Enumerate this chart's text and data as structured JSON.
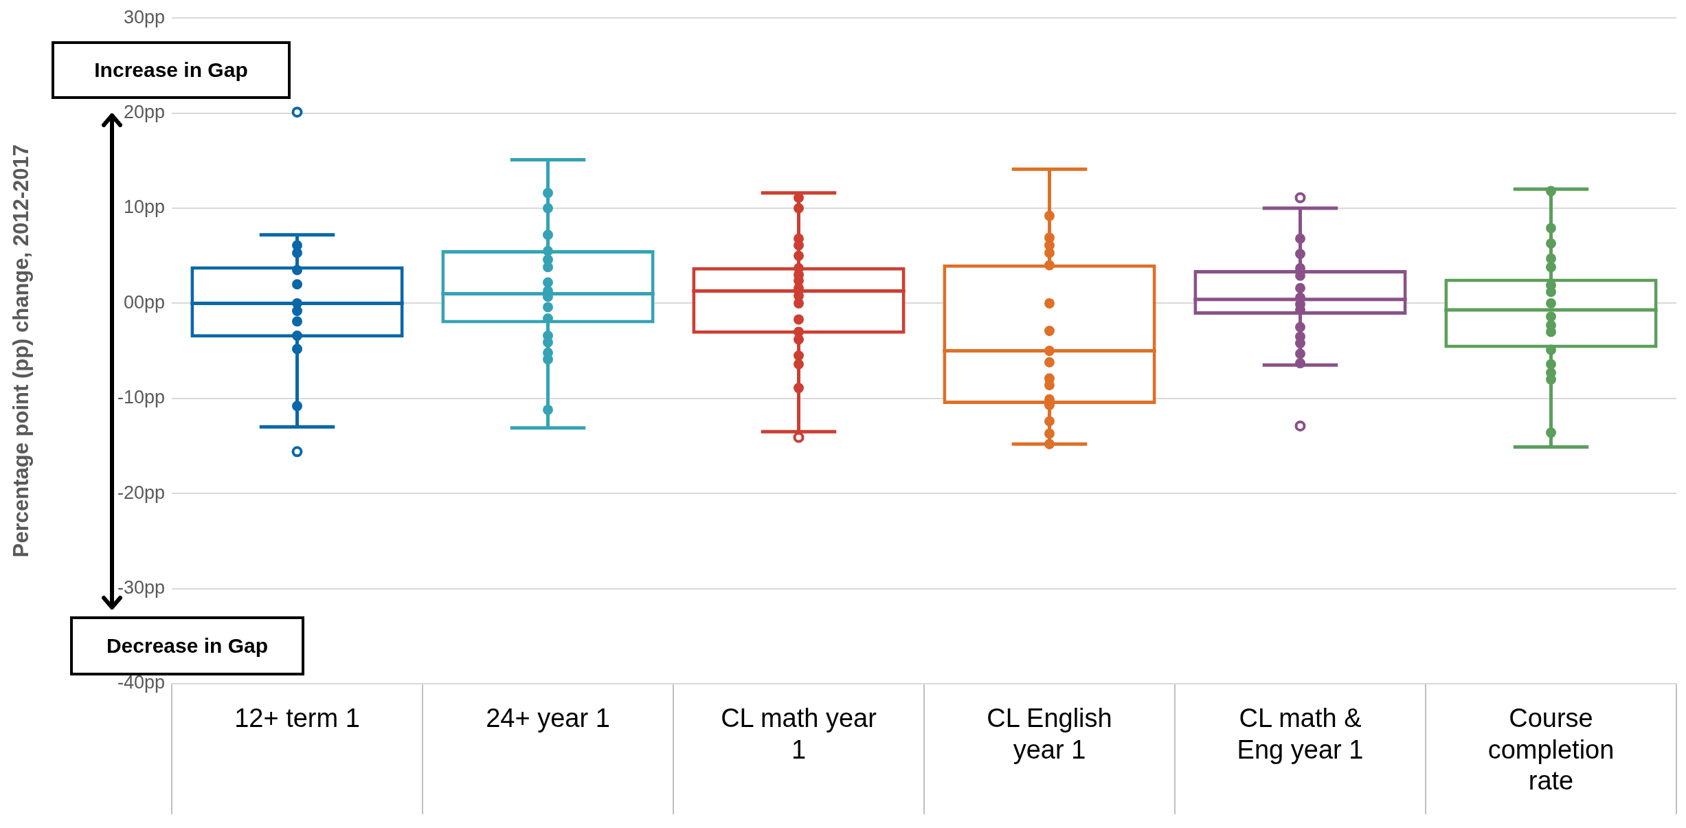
{
  "chart_data": {
    "type": "box",
    "ylabel": "Percentage point (pp) change, 2012-2017",
    "categories": [
      "12+ term 1",
      "24+ year 1",
      "CL math year 1",
      "CL English year 1",
      "CL math & Eng year 1",
      "Course completion rate"
    ],
    "colors": [
      "#0a67a8",
      "#35a3b5",
      "#cc3f32",
      "#de7027",
      "#8a5189",
      "#5c9e5c"
    ],
    "boxes": [
      {
        "low": -13.0,
        "q1": -3.6,
        "median": 0,
        "q3": 3.9,
        "high": 7.2,
        "outliers": [
          20.1,
          -15.6
        ]
      },
      {
        "low": -13.1,
        "q1": -2.1,
        "median": 1.0,
        "q3": 5.6,
        "high": 15.1
      },
      {
        "low": -13.5,
        "q1": -3.2,
        "median": 1.3,
        "q3": 3.8,
        "high": 11.6,
        "outliers": [
          -14.1
        ]
      },
      {
        "low": -14.8,
        "q1": -10.6,
        "median": -5.0,
        "q3": 4.1,
        "high": 14.1
      },
      {
        "low": -6.5,
        "q1": -1.2,
        "median": 0.4,
        "q3": 3.5,
        "high": 10.0,
        "outliers": [
          11.1,
          -12.9
        ]
      },
      {
        "low": -15.1,
        "q1": -4.7,
        "median": -0.7,
        "q3": 2.6,
        "high": 12.0
      }
    ],
    "series": [
      {
        "type": "scatter",
        "color": "#0a67a8",
        "x": [
          "12+ term 1",
          "12+ term 1",
          "12+ term 1",
          "12+ term 1",
          "12+ term 1",
          "12+ term 1",
          "12+ term 1",
          "12+ term 1",
          "12+ term 1",
          "12+ term 1"
        ],
        "values": [
          6.1,
          5.3,
          3.5,
          2.0,
          0,
          -0.8,
          -1.9,
          -3.4,
          -4.8,
          -10.8
        ]
      },
      {
        "type": "scatter",
        "color": "#35a3b5",
        "x": [
          "24+ year 1",
          "24+ year 1",
          "24+ year 1",
          "24+ year 1",
          "24+ year 1",
          "24+ year 1",
          "24+ year 1",
          "24+ year 1",
          "24+ year 1",
          "24+ year 1",
          "24+ year 1",
          "24+ year 1",
          "24+ year 1",
          "24+ year 1",
          "24+ year 1",
          "24+ year 1"
        ],
        "values": [
          11.6,
          10.0,
          7.2,
          5.5,
          4.6,
          3.8,
          2.2,
          1.3,
          0.7,
          -0.4,
          -1.6,
          -3.4,
          -4.1,
          -5.2,
          -5.9,
          -11.2
        ]
      },
      {
        "type": "scatter",
        "color": "#cc3f32",
        "x": [
          "CL math year 1",
          "CL math year 1",
          "CL math year 1",
          "CL math year 1",
          "CL math year 1",
          "CL math year 1",
          "CL math year 1",
          "CL math year 1",
          "CL math year 1",
          "CL math year 1",
          "CL math year 1",
          "CL math year 1",
          "CL math year 1",
          "CL math year 1",
          "CL math year 1",
          "CL math year 1",
          "CL math year 1"
        ],
        "values": [
          11.1,
          10.0,
          6.8,
          6.1,
          5.0,
          3.7,
          3.0,
          2.4,
          1.6,
          0.8,
          0,
          -1.7,
          -3.0,
          -3.8,
          -5.5,
          -6.4,
          -8.9
        ]
      },
      {
        "type": "scatter",
        "color": "#de7027",
        "x": [
          "CL English year 1",
          "CL English year 1",
          "CL English year 1",
          "CL English year 1",
          "CL English year 1",
          "CL English year 1",
          "CL English year 1",
          "CL English year 1",
          "CL English year 1",
          "CL English year 1",
          "CL English year 1",
          "CL English year 1",
          "CL English year 1",
          "CL English year 1",
          "CL English year 1",
          "CL English year 1"
        ],
        "values": [
          9.2,
          6.9,
          6.1,
          5.3,
          4.0,
          0,
          -2.9,
          -5.0,
          -6.2,
          -7.9,
          -8.6,
          -10.1,
          -10.7,
          -12.4,
          -13.7,
          -14.8
        ]
      },
      {
        "type": "scatter",
        "color": "#8a5189",
        "x": [
          "CL math & Eng year 1",
          "CL math & Eng year 1",
          "CL math & Eng year 1",
          "CL math & Eng year 1",
          "CL math & Eng year 1",
          "CL math & Eng year 1",
          "CL math & Eng year 1",
          "CL math & Eng year 1",
          "CL math & Eng year 1",
          "CL math & Eng year 1",
          "CL math & Eng year 1",
          "CL math & Eng year 1",
          "CL math & Eng year 1"
        ],
        "values": [
          6.8,
          5.2,
          3.7,
          2.9,
          1.6,
          0.6,
          -0.1,
          -0.7,
          -2.5,
          -3.5,
          -4.2,
          -5.3,
          -6.3
        ]
      },
      {
        "type": "scatter",
        "color": "#5c9e5c",
        "x": [
          "Course completion rate",
          "Course completion rate",
          "Course completion rate",
          "Course completion rate",
          "Course completion rate",
          "Course completion rate",
          "Course completion rate",
          "Course completion rate",
          "Course completion rate",
          "Course completion rate",
          "Course completion rate",
          "Course completion rate",
          "Course completion rate",
          "Course completion rate",
          "Course completion rate",
          "Course completion rate"
        ],
        "values": [
          11.8,
          7.9,
          6.3,
          4.7,
          3.8,
          1.9,
          1.2,
          0,
          -1.4,
          -2.3,
          -3.0,
          -4.9,
          -6.4,
          -7.3,
          -8.0,
          -13.6
        ]
      }
    ],
    "ylim": [
      -40,
      30
    ],
    "yticks": [
      {
        "value": -40,
        "label": "-40pp"
      },
      {
        "value": -30,
        "label": "-30pp"
      },
      {
        "value": -20,
        "label": "-20pp"
      },
      {
        "value": -10,
        "label": "-10pp"
      },
      {
        "value": 0,
        "label": "00pp"
      },
      {
        "value": 10,
        "label": "10pp"
      },
      {
        "value": 20,
        "label": "20pp"
      },
      {
        "value": 30,
        "label": "30pp"
      }
    ],
    "grid": "y",
    "marker": "circle",
    "annotations": [
      "Increase in Gap",
      "Decrease in Gap"
    ]
  }
}
